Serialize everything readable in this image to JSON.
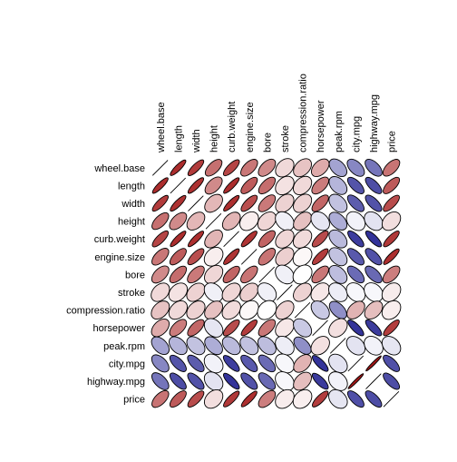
{
  "chart_data": {
    "type": "heatmap",
    "subtype": "ellipse-correlation-matrix",
    "title": "",
    "variables": [
      "wheel.base",
      "length",
      "width",
      "height",
      "curb.weight",
      "engine.size",
      "bore",
      "stroke",
      "compression.ratio",
      "horsepower",
      "peak.rpm",
      "city.mpg",
      "highway.mpg",
      "price"
    ],
    "color_scale": {
      "negative": "#00007F",
      "zero": "#FFFFFF",
      "positive": "#A01010"
    },
    "matrix": [
      [
        1.0,
        0.88,
        0.82,
        0.6,
        0.78,
        0.57,
        0.49,
        0.16,
        0.25,
        0.35,
        -0.36,
        -0.47,
        -0.54,
        0.58
      ],
      [
        0.88,
        1.0,
        0.86,
        0.49,
        0.88,
        0.68,
        0.61,
        0.12,
        0.16,
        0.55,
        -0.29,
        -0.67,
        -0.7,
        0.69
      ],
      [
        0.82,
        0.86,
        1.0,
        0.3,
        0.87,
        0.74,
        0.56,
        0.19,
        0.19,
        0.64,
        -0.24,
        -0.64,
        -0.68,
        0.75
      ],
      [
        0.6,
        0.49,
        0.3,
        1.0,
        0.31,
        0.07,
        0.17,
        -0.06,
        0.26,
        -0.1,
        -0.32,
        -0.05,
        -0.11,
        0.14
      ],
      [
        0.78,
        0.88,
        0.87,
        0.31,
        1.0,
        0.85,
        0.65,
        0.17,
        0.15,
        0.75,
        -0.27,
        -0.76,
        -0.8,
        0.83
      ],
      [
        0.57,
        0.68,
        0.74,
        0.07,
        0.85,
        1.0,
        0.58,
        0.2,
        0.03,
        0.81,
        -0.24,
        -0.65,
        -0.68,
        0.87
      ],
      [
        0.49,
        0.61,
        0.56,
        0.17,
        0.65,
        0.58,
        1.0,
        -0.06,
        0.0,
        0.57,
        -0.26,
        -0.58,
        -0.59,
        0.54
      ],
      [
        0.16,
        0.12,
        0.19,
        -0.06,
        0.17,
        0.2,
        -0.06,
        1.0,
        0.19,
        0.1,
        -0.07,
        -0.03,
        -0.03,
        0.08
      ],
      [
        0.25,
        0.16,
        0.19,
        0.26,
        0.15,
        0.03,
        0.0,
        0.19,
        1.0,
        -0.21,
        -0.44,
        0.32,
        0.27,
        0.07
      ],
      [
        0.35,
        0.55,
        0.64,
        -0.1,
        0.75,
        0.81,
        0.57,
        0.1,
        -0.21,
        1.0,
        0.13,
        -0.8,
        -0.77,
        0.81
      ],
      [
        -0.36,
        -0.29,
        -0.24,
        -0.32,
        -0.27,
        -0.24,
        -0.26,
        -0.07,
        -0.44,
        0.13,
        1.0,
        -0.11,
        -0.05,
        -0.1
      ],
      [
        -0.47,
        -0.67,
        -0.64,
        -0.05,
        -0.76,
        -0.65,
        -0.58,
        -0.03,
        0.32,
        -0.8,
        -0.11,
        1.0,
        0.97,
        -0.69
      ],
      [
        -0.54,
        -0.7,
        -0.68,
        -0.11,
        -0.8,
        -0.68,
        -0.59,
        -0.03,
        0.27,
        -0.77,
        -0.05,
        0.97,
        1.0,
        -0.7
      ],
      [
        0.58,
        0.69,
        0.75,
        0.14,
        0.83,
        0.87,
        0.54,
        0.08,
        0.07,
        0.81,
        -0.1,
        -0.69,
        -0.7,
        1.0
      ]
    ]
  }
}
